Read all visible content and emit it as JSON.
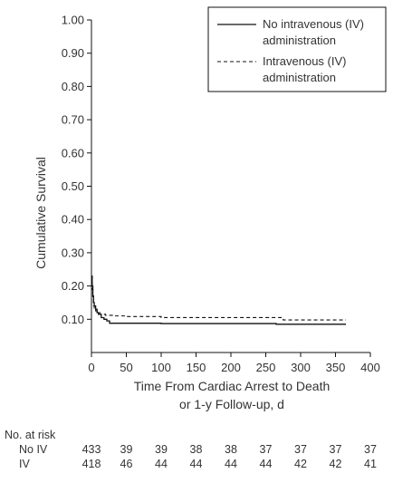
{
  "chart_data": {
    "type": "line",
    "xlabel_lines": [
      "Time From Cardiac Arrest to Death",
      "or 1-y Follow-up, d"
    ],
    "ylabel": "Cumulative Survival",
    "xlim": [
      0,
      400
    ],
    "ylim": [
      0,
      1.0
    ],
    "x_ticks": [
      0,
      50,
      100,
      150,
      200,
      250,
      300,
      350,
      400
    ],
    "x_tick_labels": [
      "0",
      "50",
      "100",
      "150",
      "200",
      "250",
      "300",
      "350",
      "400"
    ],
    "y_ticks": [
      0.1,
      0.2,
      0.3,
      0.4,
      0.5,
      0.6,
      0.7,
      0.8,
      0.9,
      1.0
    ],
    "y_tick_labels": [
      "0.10",
      "0.20",
      "0.30",
      "0.40",
      "0.50",
      "0.60",
      "0.70",
      "0.80",
      "0.90",
      "1.00"
    ],
    "grid": false,
    "legend_position": "top-right",
    "series": [
      {
        "name": "No intravenous (IV) administration",
        "style": "solid",
        "color": "#111111",
        "x": [
          0,
          1,
          2,
          3,
          4,
          6,
          8,
          10,
          14,
          18,
          22,
          26,
          100,
          265,
          365
        ],
        "y": [
          0.23,
          0.2,
          0.17,
          0.15,
          0.14,
          0.13,
          0.12,
          0.115,
          0.105,
          0.1,
          0.095,
          0.088,
          0.087,
          0.085,
          0.085
        ]
      },
      {
        "name": "Intravenous (IV) administration",
        "style": "dashed",
        "color": "#111111",
        "x": [
          0,
          1,
          2,
          3,
          4,
          6,
          8,
          12,
          20,
          30,
          50,
          100,
          270,
          275,
          365
        ],
        "y": [
          0.23,
          0.19,
          0.16,
          0.14,
          0.13,
          0.125,
          0.12,
          0.115,
          0.112,
          0.11,
          0.108,
          0.105,
          0.105,
          0.098,
          0.098
        ]
      }
    ],
    "legend": [
      {
        "label_lines": [
          "No intravenous (IV)",
          "administration"
        ],
        "style": "solid"
      },
      {
        "label_lines": [
          "Intravenous (IV)",
          "administration"
        ],
        "style": "dashed"
      }
    ],
    "risk_table": {
      "title": "No. at risk",
      "rows": [
        {
          "label": "No IV",
          "values": [
            "433",
            "39",
            "39",
            "38",
            "38",
            "37",
            "37",
            "37",
            "37"
          ]
        },
        {
          "label": "IV",
          "values": [
            "418",
            "46",
            "44",
            "44",
            "44",
            "44",
            "42",
            "42",
            "41"
          ]
        }
      ]
    }
  }
}
